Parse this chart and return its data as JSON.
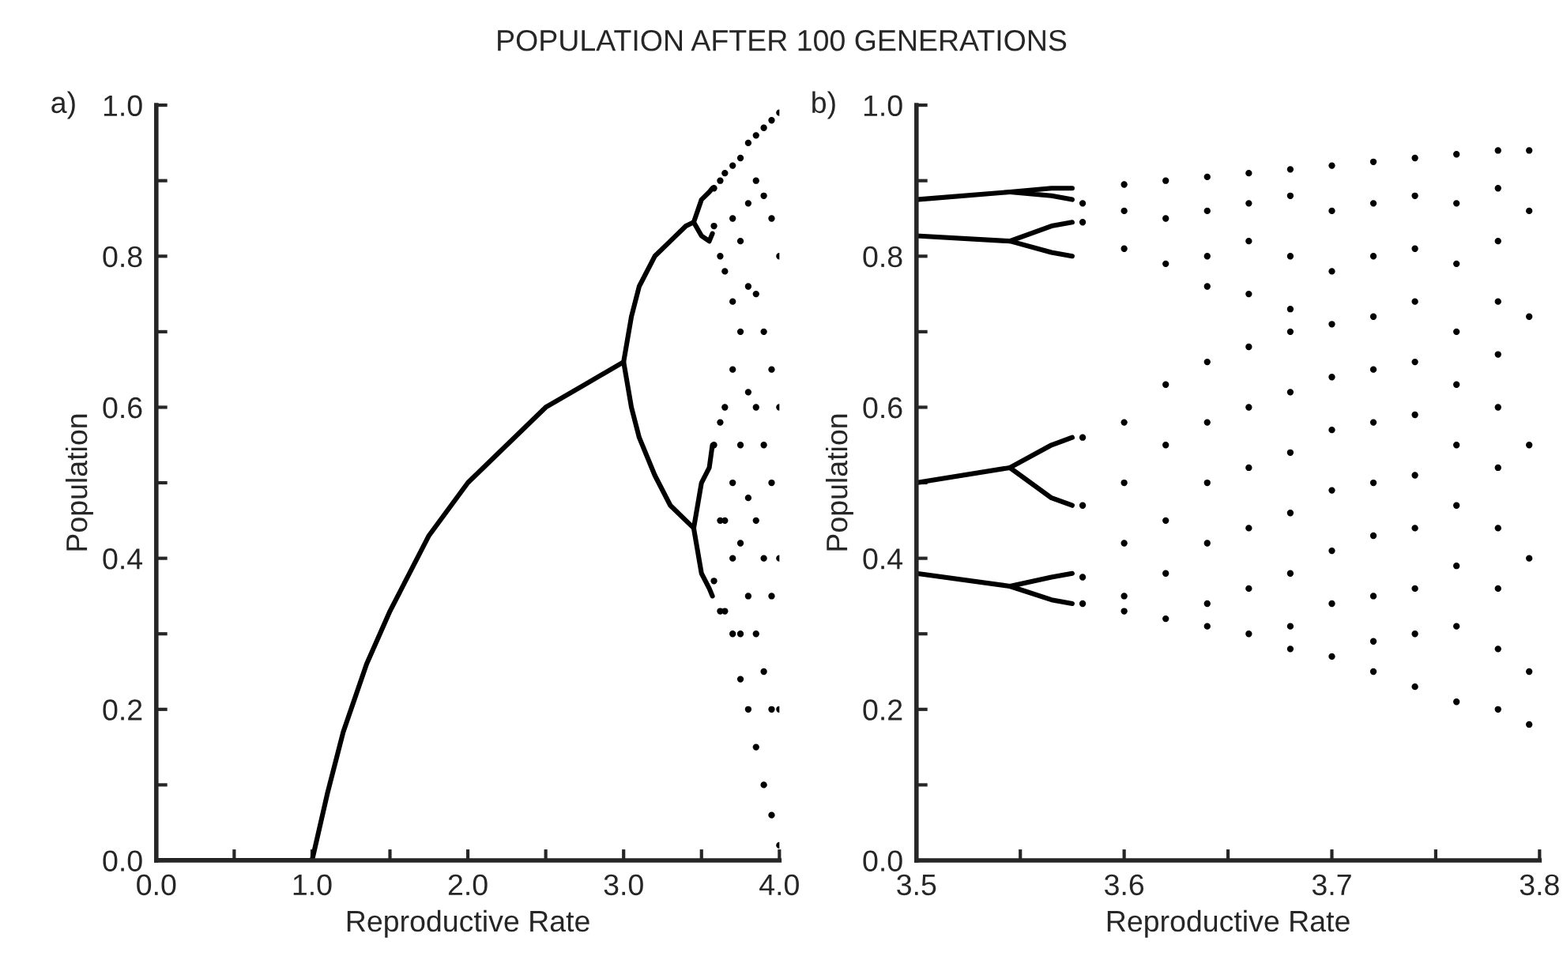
{
  "chart_data": [
    {
      "type": "scatter",
      "title": "POPULATION AFTER 100 GENERATIONS",
      "xlabel": "Reproductive Rate",
      "ylabel": "Population",
      "annotations": [
        "a)"
      ],
      "xlim": [
        0,
        4
      ],
      "ylim": [
        0,
        1
      ],
      "xticks": [
        {
          "value": 0,
          "label": "0.0"
        },
        {
          "value": 0.5,
          "label": null
        },
        {
          "value": 1,
          "label": "1.0"
        },
        {
          "value": 1.5,
          "label": null
        },
        {
          "value": 2,
          "label": "2.0"
        },
        {
          "value": 2.5,
          "label": null
        },
        {
          "value": 3,
          "label": "3.0"
        },
        {
          "value": 3.5,
          "label": null
        },
        {
          "value": 4,
          "label": "4.0"
        }
      ],
      "yticks": [
        {
          "value": 0,
          "label": "0.0"
        },
        {
          "value": 0.1,
          "label": null
        },
        0.2,
        {
          "value": 0.3,
          "label": null
        },
        0.4,
        {
          "value": 0.5,
          "label": null
        },
        0.6,
        {
          "value": 0.7,
          "label": null
        },
        0.8,
        {
          "value": 0.9,
          "label": null
        },
        {
          "value": 1,
          "label": "1.0"
        }
      ],
      "series": [
        {
          "type": "line",
          "color": "#000000",
          "x": [
            0,
            1.0,
            1.1,
            1.2,
            1.35,
            1.5,
            1.75,
            2.0,
            2.25,
            2.5,
            2.75,
            3.0
          ],
          "values": [
            0,
            0,
            0.09,
            0.17,
            0.26,
            0.33,
            0.43,
            0.5,
            0.55,
            0.6,
            0.63,
            0.66
          ]
        },
        {
          "type": "line",
          "color": "#000000",
          "x": [
            3.45,
            3.4,
            3.3,
            3.2,
            3.1,
            3.05,
            3.0,
            3.05,
            3.1,
            3.2,
            3.3,
            3.4,
            3.45
          ],
          "values": [
            0.44,
            0.45,
            0.47,
            0.51,
            0.56,
            0.6,
            0.66,
            0.72,
            0.76,
            0.8,
            0.82,
            0.84,
            0.845
          ]
        },
        {
          "type": "line",
          "color": "#000000",
          "x": [
            3.57,
            3.55,
            3.5,
            3.45,
            3.5,
            3.55,
            3.57
          ],
          "values": [
            0.89,
            0.885,
            0.875,
            0.845,
            0.827,
            0.82,
            0.83
          ]
        },
        {
          "type": "line",
          "color": "#000000",
          "x": [
            3.57,
            3.55,
            3.5,
            3.45,
            3.5,
            3.55,
            3.57
          ],
          "values": [
            0.55,
            0.52,
            0.5,
            0.44,
            0.38,
            0.36,
            0.35
          ]
        },
        {
          "color": "#000000",
          "marker": "circle",
          "x": [
            3.58,
            3.58,
            3.58,
            3.58,
            3.62,
            3.62,
            3.62,
            3.62,
            3.62,
            3.65,
            3.65,
            3.65,
            3.65,
            3.65,
            3.7,
            3.7,
            3.7,
            3.7,
            3.7,
            3.7,
            3.7,
            3.75,
            3.75,
            3.75,
            3.75,
            3.75,
            3.75,
            3.75,
            3.8,
            3.8,
            3.8,
            3.8,
            3.8,
            3.8,
            3.8,
            3.85,
            3.85,
            3.85,
            3.85,
            3.85,
            3.85,
            3.85,
            3.9,
            3.9,
            3.9,
            3.9,
            3.9,
            3.9,
            3.9,
            3.95,
            3.95,
            3.95,
            3.95,
            3.95,
            3.95,
            3.95,
            4.0,
            4.0,
            4.0,
            4.0,
            4.0,
            4.0
          ],
          "values": [
            0.89,
            0.84,
            0.55,
            0.37,
            0.9,
            0.8,
            0.58,
            0.45,
            0.33,
            0.91,
            0.78,
            0.6,
            0.45,
            0.33,
            0.92,
            0.85,
            0.74,
            0.65,
            0.5,
            0.4,
            0.3,
            0.93,
            0.82,
            0.7,
            0.55,
            0.42,
            0.3,
            0.24,
            0.95,
            0.87,
            0.76,
            0.62,
            0.48,
            0.35,
            0.2,
            0.96,
            0.9,
            0.75,
            0.6,
            0.45,
            0.3,
            0.15,
            0.97,
            0.88,
            0.7,
            0.55,
            0.4,
            0.25,
            0.1,
            0.98,
            0.85,
            0.65,
            0.5,
            0.35,
            0.2,
            0.06,
            0.99,
            0.8,
            0.6,
            0.4,
            0.2,
            0.02
          ]
        }
      ]
    },
    {
      "type": "scatter",
      "xlabel": "Reproductive Rate",
      "ylabel": "Population",
      "annotations": [
        "b)"
      ],
      "xlim": [
        3.5,
        3.8
      ],
      "ylim": [
        0,
        1
      ],
      "xticks": [
        3.5,
        {
          "value": 3.55,
          "label": null
        },
        3.6,
        {
          "value": 3.65,
          "label": null
        },
        3.7,
        {
          "value": 3.75,
          "label": null
        },
        3.8
      ],
      "yticks": [
        {
          "value": 0,
          "label": "0.0"
        },
        {
          "value": 0.1,
          "label": null
        },
        0.2,
        {
          "value": 0.3,
          "label": null
        },
        0.4,
        {
          "value": 0.5,
          "label": null
        },
        0.6,
        {
          "value": 0.7,
          "label": null
        },
        0.8,
        {
          "value": 0.9,
          "label": null
        },
        {
          "value": 1,
          "label": "1.0"
        }
      ],
      "series": [
        {
          "type": "line",
          "color": "#000000",
          "x": [
            3.5,
            3.545
          ],
          "values": [
            0.875,
            0.885
          ]
        },
        {
          "type": "line",
          "color": "#000000",
          "x": [
            3.575,
            3.565,
            3.545,
            3.565,
            3.575
          ],
          "values": [
            0.89,
            0.89,
            0.885,
            0.88,
            0.875
          ]
        },
        {
          "type": "line",
          "color": "#000000",
          "x": [
            3.5,
            3.545
          ],
          "values": [
            0.827,
            0.82
          ]
        },
        {
          "type": "line",
          "color": "#000000",
          "x": [
            3.575,
            3.565,
            3.545,
            3.565,
            3.575
          ],
          "values": [
            0.845,
            0.84,
            0.82,
            0.805,
            0.8
          ]
        },
        {
          "type": "line",
          "color": "#000000",
          "x": [
            3.5,
            3.545
          ],
          "values": [
            0.5,
            0.52
          ]
        },
        {
          "type": "line",
          "color": "#000000",
          "x": [
            3.575,
            3.565,
            3.545,
            3.565,
            3.575
          ],
          "values": [
            0.56,
            0.55,
            0.52,
            0.48,
            0.47
          ]
        },
        {
          "type": "line",
          "color": "#000000",
          "x": [
            3.5,
            3.545
          ],
          "values": [
            0.38,
            0.363
          ]
        },
        {
          "type": "line",
          "color": "#000000",
          "x": [
            3.575,
            3.565,
            3.545,
            3.565,
            3.575
          ],
          "values": [
            0.38,
            0.375,
            0.363,
            0.345,
            0.34
          ]
        },
        {
          "color": "#000000",
          "marker": "circle",
          "x": [
            3.58,
            3.58,
            3.58,
            3.58,
            3.58,
            3.58,
            3.6,
            3.6,
            3.6,
            3.6,
            3.6,
            3.6,
            3.6,
            3.6,
            3.62,
            3.62,
            3.62,
            3.62,
            3.62,
            3.62,
            3.62,
            3.62,
            3.64,
            3.64,
            3.64,
            3.64,
            3.64,
            3.64,
            3.64,
            3.64,
            3.64,
            3.64,
            3.66,
            3.66,
            3.66,
            3.66,
            3.66,
            3.66,
            3.66,
            3.66,
            3.66,
            3.66,
            3.68,
            3.68,
            3.68,
            3.68,
            3.68,
            3.68,
            3.68,
            3.68,
            3.68,
            3.68,
            3.68,
            3.7,
            3.7,
            3.7,
            3.7,
            3.7,
            3.7,
            3.7,
            3.7,
            3.7,
            3.7,
            3.72,
            3.72,
            3.72,
            3.72,
            3.72,
            3.72,
            3.72,
            3.72,
            3.72,
            3.72,
            3.72,
            3.74,
            3.74,
            3.74,
            3.74,
            3.74,
            3.74,
            3.74,
            3.74,
            3.74,
            3.74,
            3.74,
            3.76,
            3.76,
            3.76,
            3.76,
            3.76,
            3.76,
            3.76,
            3.76,
            3.76,
            3.76,
            3.78,
            3.78,
            3.78,
            3.78,
            3.78,
            3.78,
            3.78,
            3.78,
            3.78,
            3.78,
            3.78,
            3.795,
            3.795,
            3.795,
            3.795,
            3.795,
            3.795,
            3.795
          ],
          "values": [
            0.87,
            0.845,
            0.56,
            0.47,
            0.375,
            0.34,
            0.895,
            0.86,
            0.81,
            0.58,
            0.5,
            0.42,
            0.35,
            0.33,
            0.9,
            0.85,
            0.79,
            0.63,
            0.55,
            0.45,
            0.38,
            0.32,
            0.905,
            0.86,
            0.8,
            0.76,
            0.66,
            0.58,
            0.5,
            0.42,
            0.34,
            0.31,
            0.91,
            0.87,
            0.82,
            0.75,
            0.68,
            0.6,
            0.52,
            0.44,
            0.36,
            0.3,
            0.915,
            0.88,
            0.8,
            0.73,
            0.7,
            0.62,
            0.54,
            0.46,
            0.38,
            0.31,
            0.28,
            0.92,
            0.86,
            0.78,
            0.71,
            0.64,
            0.57,
            0.49,
            0.41,
            0.34,
            0.27,
            0.925,
            0.87,
            0.8,
            0.72,
            0.65,
            0.58,
            0.5,
            0.43,
            0.35,
            0.29,
            0.25,
            0.93,
            0.88,
            0.81,
            0.74,
            0.66,
            0.59,
            0.51,
            0.44,
            0.36,
            0.3,
            0.23,
            0.935,
            0.87,
            0.79,
            0.7,
            0.63,
            0.55,
            0.47,
            0.39,
            0.31,
            0.21,
            0.94,
            0.89,
            0.82,
            0.74,
            0.67,
            0.6,
            0.52,
            0.44,
            0.36,
            0.28,
            0.2,
            0.94,
            0.86,
            0.72,
            0.55,
            0.4,
            0.25,
            0.18
          ]
        }
      ]
    }
  ]
}
